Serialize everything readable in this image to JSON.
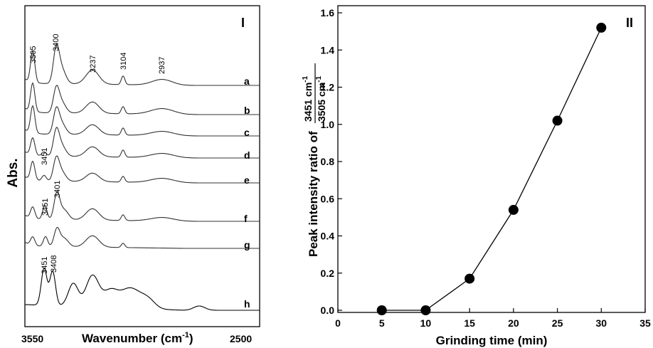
{
  "chart_data": [
    {
      "type": "line",
      "panel_label": "I",
      "ylabel": "Abs.",
      "xlabel": "Wavenumber (cm",
      "xlabel_sup": "-1",
      "xlabel_end": ")",
      "x_ticks": [
        "3550",
        "2500"
      ],
      "xlim": [
        3550,
        2500
      ],
      "series_labels": [
        "a",
        "b",
        "c",
        "d",
        "e",
        "f",
        "g",
        "h"
      ],
      "peak_labels": [
        "3505",
        "3400",
        "3237",
        "3104",
        "2937",
        "3451",
        "3451",
        "3401",
        "3451",
        "3408"
      ]
    },
    {
      "type": "scatter",
      "panel_label": "II",
      "xlabel": "Grinding time (min)",
      "ylabel": "Peak intensity ratio of",
      "ylabel_num": "3451 cm",
      "ylabel_den": "3505 cm",
      "ylabel_sup": "-1",
      "xlim": [
        0,
        35
      ],
      "ylim": [
        0,
        1.6
      ],
      "x_ticks": [
        "0",
        "5",
        "10",
        "15",
        "20",
        "25",
        "30",
        "35"
      ],
      "y_ticks": [
        "0.0",
        "0.2",
        "0.4",
        "0.6",
        "0.8",
        "1.0",
        "1.2",
        "1.4",
        "1.6"
      ],
      "x": [
        5,
        10,
        15,
        20,
        25,
        30
      ],
      "y": [
        0.0,
        0.0,
        0.17,
        0.54,
        1.02,
        1.52
      ]
    }
  ]
}
